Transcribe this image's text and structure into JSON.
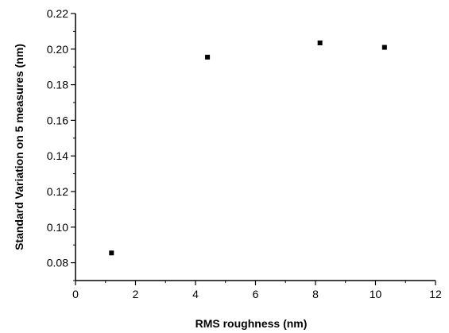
{
  "chart_data": {
    "type": "scatter",
    "title": "",
    "xlabel": "RMS roughness (nm)",
    "ylabel": "Standard Variation on 5 measures (nm)",
    "xlim": [
      0,
      12
    ],
    "ylim": [
      0.07,
      0.22
    ],
    "xticks": [
      0,
      2,
      4,
      6,
      8,
      10,
      12
    ],
    "xtick_labels": [
      "0",
      "2",
      "4",
      "6",
      "8",
      "10",
      "12"
    ],
    "yticks": [
      0.08,
      0.1,
      0.12,
      0.14,
      0.16,
      0.18,
      0.2,
      0.22
    ],
    "ytick_labels": [
      "0.08",
      "0.10",
      "0.12",
      "0.14",
      "0.16",
      "0.18",
      "0.20",
      "0.22"
    ],
    "grid": false,
    "legend": "none",
    "marker": "square",
    "marker_color": "#000000",
    "series": [
      {
        "x": [
          1.2,
          4.4,
          8.15,
          10.3
        ],
        "y": [
          0.0855,
          0.1955,
          0.2035,
          0.201
        ]
      }
    ]
  }
}
